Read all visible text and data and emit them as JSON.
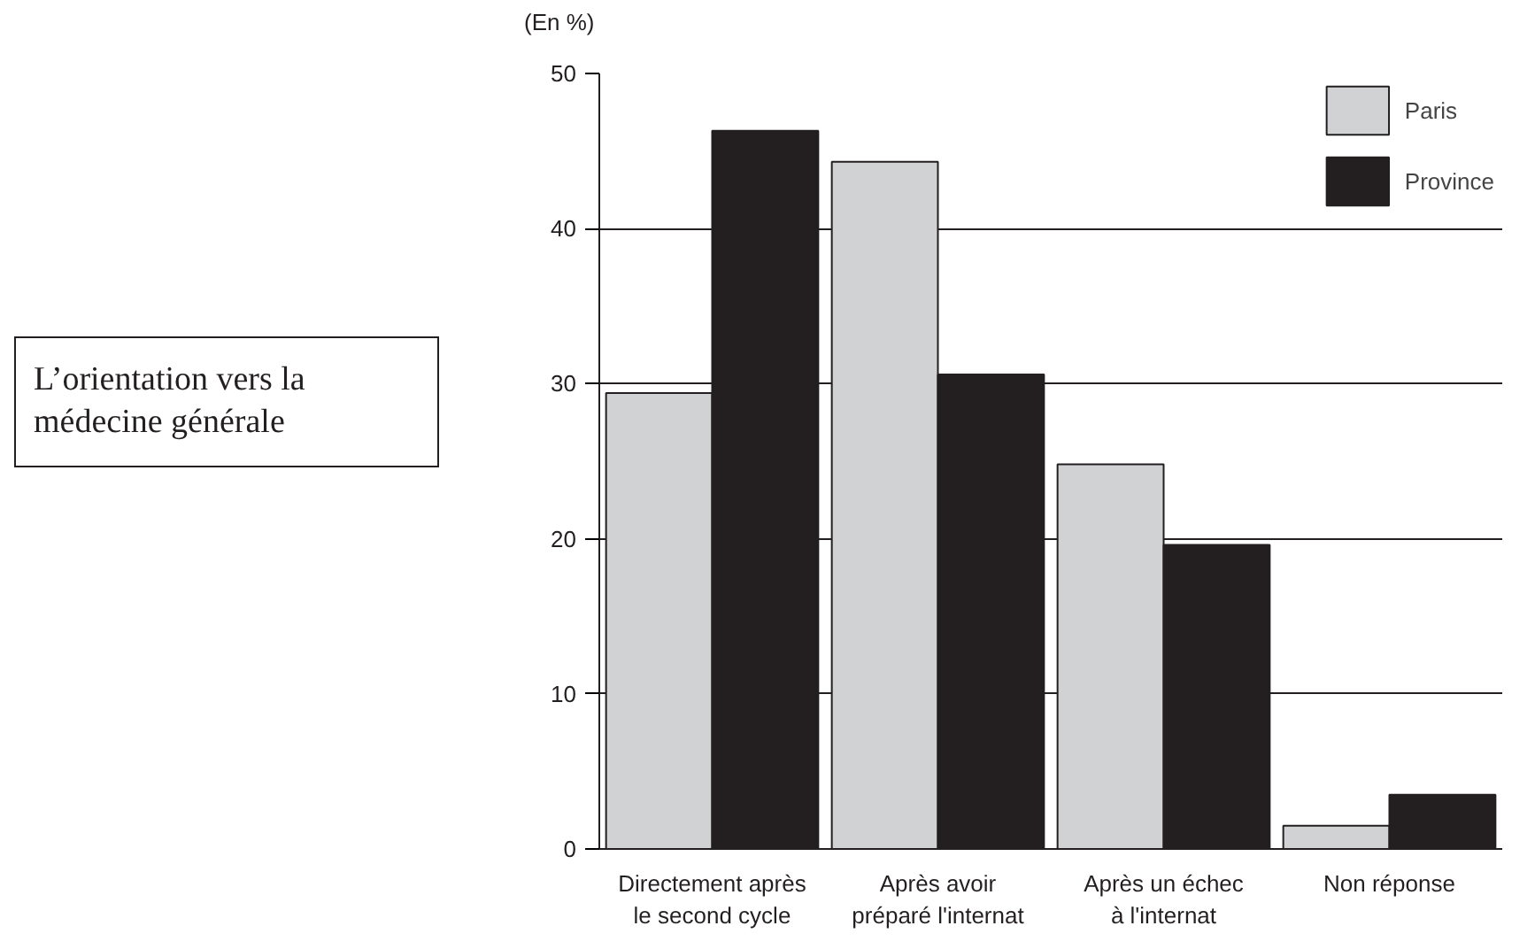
{
  "chart_data": {
    "type": "bar",
    "title": "L’orientation vers la médecine générale",
    "ylabel": "(En %)",
    "categories": [
      "Directement après\nle second cycle",
      "Après avoir\npréparé l'internat",
      "Après un échec\nà l'internat",
      "Non réponse"
    ],
    "series": [
      {
        "name": "Paris",
        "color": "#d1d2d4",
        "values": [
          29.4,
          44.3,
          24.8,
          1.5
        ]
      },
      {
        "name": "Province",
        "color": "#231f20",
        "values": [
          46.3,
          30.6,
          19.6,
          3.5
        ]
      }
    ],
    "ylim": [
      0,
      50
    ],
    "yticks": [
      0,
      10,
      20,
      30,
      40,
      50
    ],
    "grid": "y",
    "legend": "top right"
  }
}
